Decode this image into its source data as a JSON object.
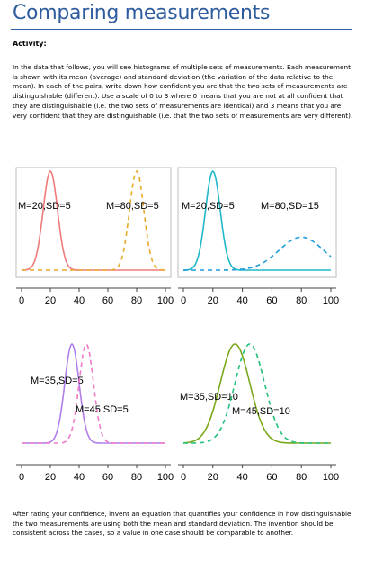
{
  "title": "Comparing measurements",
  "activity_label": "Activity:",
  "intro_text": "In the data that follows, you will see histograms of multiple sets of measurements. Each measurement is shown with its mean (average) and standard deviation (the variation of the data relative to the mean). In each of the pairs, write down how confident you are that the two sets of measurements are distinguishable (different). Use a scale of 0 to 3 where 0 means that you are not at all confident that they are distinguishable (i.e. the two sets of measurements are identical) and 3 means that you are very confident that they are distinguishable (i.e. that the two sets of measurements are very different).",
  "outro_text": "After rating your confidence, invent an equation that quantifies your confidence in how distinguishable the two measurements are using both the mean and standard deviation. The invention should be consistent across the cases, so a value in one case should be comparable to another.",
  "chart_data": [
    {
      "type": "line",
      "xlim": [
        0,
        100
      ],
      "xticks": [
        "0",
        "20",
        "40",
        "60",
        "80",
        "100"
      ],
      "series": [
        {
          "name": "M=20,SD=5",
          "mean": 20,
          "sd": 5,
          "color": "#f07a7a",
          "dashed": false
        },
        {
          "name": "M=80,SD=5",
          "mean": 80,
          "sd": 5,
          "color": "#e8a928",
          "dashed": true
        }
      ]
    },
    {
      "type": "line",
      "xlim": [
        0,
        100
      ],
      "xticks": [
        "0",
        "20",
        "40",
        "60",
        "80",
        "100"
      ],
      "series": [
        {
          "name": "M=20,SD=5",
          "mean": 20,
          "sd": 5,
          "color": "#1fb8c9",
          "dashed": false
        },
        {
          "name": "M=80,SD=15",
          "mean": 80,
          "sd": 15,
          "color": "#1f9bd8",
          "dashed": true
        }
      ]
    },
    {
      "type": "line",
      "xlim": [
        0,
        100
      ],
      "xticks": [
        "0",
        "20",
        "40",
        "60",
        "80",
        "100"
      ],
      "series": [
        {
          "name": "M=35,SD=5",
          "mean": 35,
          "sd": 5,
          "color": "#b07ee8",
          "dashed": false
        },
        {
          "name": "M=45,SD=5",
          "mean": 45,
          "sd": 5,
          "color": "#f07ac8",
          "dashed": true
        }
      ]
    },
    {
      "type": "line",
      "xlim": [
        0,
        100
      ],
      "xticks": [
        "0",
        "20",
        "40",
        "60",
        "80",
        "100"
      ],
      "series": [
        {
          "name": "M=35,SD=10",
          "mean": 35,
          "sd": 10,
          "color": "#7aa81c",
          "dashed": false
        },
        {
          "name": "M=45,SD=10",
          "mean": 45,
          "sd": 10,
          "color": "#22c07a",
          "dashed": true
        }
      ]
    }
  ]
}
